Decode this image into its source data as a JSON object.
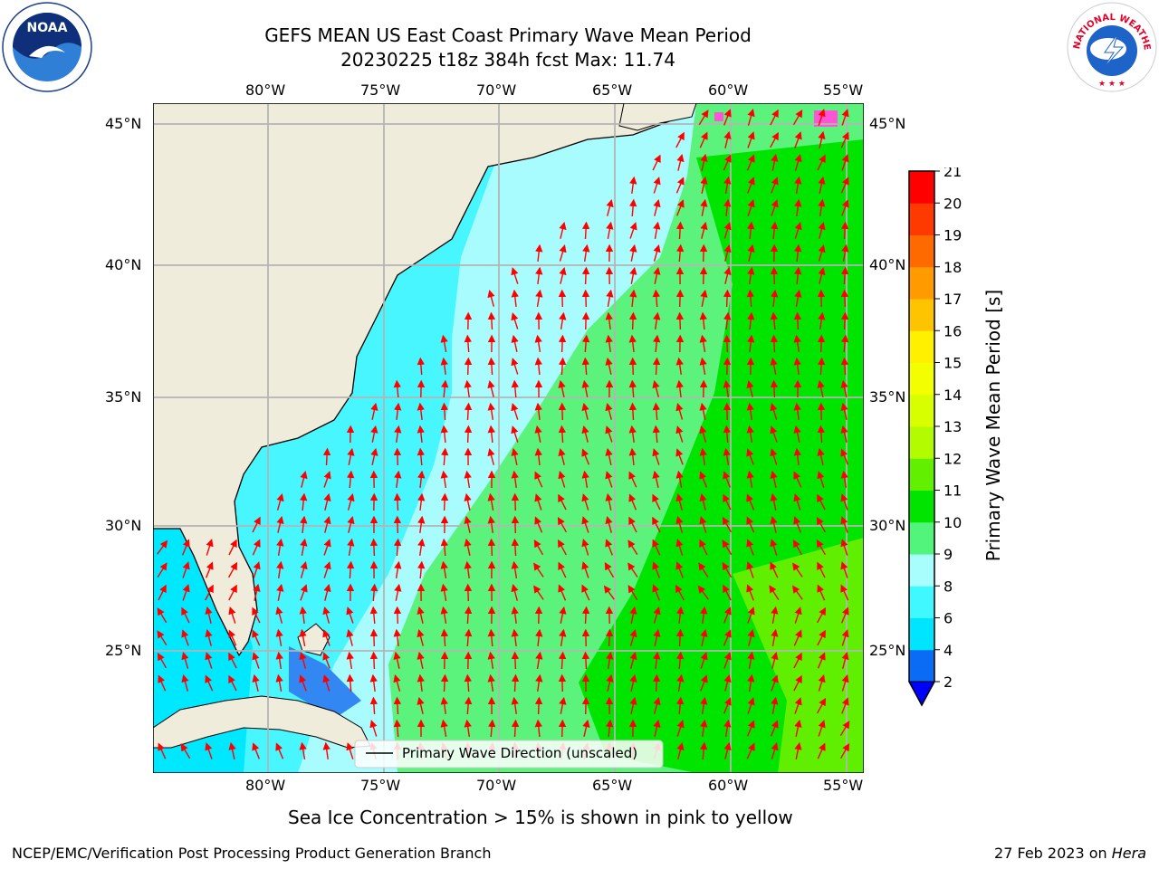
{
  "title": {
    "line1": "GEFS MEAN US East Coast Primary Wave Mean Period",
    "line2": "20230225 t18z 384h fcst   Max: 11.74"
  },
  "lon_labels": [
    "80°W",
    "75°W",
    "70°W",
    "65°W",
    "60°W",
    "55°W"
  ],
  "lat_labels": [
    "45°N",
    "40°N",
    "35°N",
    "30°N",
    "25°N"
  ],
  "legend": {
    "label": "Primary Wave Direction (unscaled)"
  },
  "colorbar": {
    "label": "Primary Wave Mean Period [s]",
    "ticks": [
      "2",
      "4",
      "6",
      "8",
      "9",
      "10",
      "11",
      "12",
      "13",
      "14",
      "15",
      "16",
      "17",
      "18",
      "19",
      "20",
      "21"
    ],
    "colors": [
      "#0a6cf5",
      "#00e5ff",
      "#40f8ff",
      "#a8fdfd",
      "#53f47c",
      "#00e400",
      "#63f000",
      "#b3fb00",
      "#d8ff00",
      "#f3ff00",
      "#fff000",
      "#ffc400",
      "#ff9b00",
      "#ff6a00",
      "#ff3a00",
      "#ff0000"
    ],
    "under_color": "#0000ff"
  },
  "logos": {
    "left": "NOAA",
    "right": "NATIONAL WEATHER SERVICE"
  },
  "caption": "Sea Ice Concentration > 15% is shown in pink to yellow",
  "footer": {
    "left": "NCEP/EMC/Verification Post Processing Product Generation Branch",
    "right_prefix": "27 Feb 2023 on ",
    "right_host": "Hera"
  }
}
